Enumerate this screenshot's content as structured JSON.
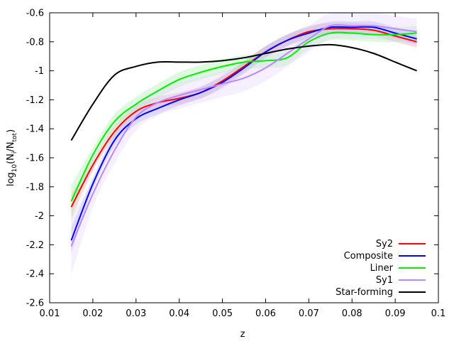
{
  "chart_data": {
    "type": "line",
    "title": "",
    "xlabel": "z",
    "ylabel": "log10(Ni/Ntot)",
    "ylabel_parts": {
      "base": "log",
      "base_sub": "10",
      "open": "(N",
      "num_sub": "i",
      "mid": "/N",
      "den_sub": "tot",
      "close": ")"
    },
    "xlim": [
      0.01,
      0.1
    ],
    "ylim": [
      -2.6,
      -0.6
    ],
    "xticks": [
      0.01,
      0.02,
      0.03,
      0.04,
      0.05,
      0.06,
      0.07,
      0.08,
      0.09,
      0.1
    ],
    "xtick_labels": [
      "0.01",
      "0.02",
      "0.03",
      "0.04",
      "0.05",
      "0.06",
      "0.07",
      "0.08",
      "0.09",
      "0.1"
    ],
    "yticks": [
      -2.6,
      -2.4,
      -2.2,
      -2,
      -1.8,
      -1.6,
      -1.4,
      -1.2,
      -1,
      -0.8,
      -0.6
    ],
    "ytick_labels": [
      "-2.6",
      "-2.4",
      "-2.2",
      "-2",
      "-1.8",
      "-1.6",
      "-1.4",
      "-1.2",
      "-1",
      "-0.8",
      "-0.6"
    ],
    "grid": false,
    "legend_position": "bottom-right",
    "series": [
      {
        "name": "Sy2",
        "color": "#ff0000",
        "band_color": "#e8a0a0",
        "band": 0.04,
        "x": [
          0.015,
          0.02,
          0.025,
          0.03,
          0.035,
          0.04,
          0.045,
          0.05,
          0.055,
          0.06,
          0.065,
          0.07,
          0.075,
          0.08,
          0.085,
          0.09,
          0.095
        ],
        "y": [
          -1.94,
          -1.65,
          -1.42,
          -1.28,
          -1.22,
          -1.19,
          -1.15,
          -1.07,
          -0.97,
          -0.87,
          -0.79,
          -0.73,
          -0.71,
          -0.71,
          -0.72,
          -0.76,
          -0.8
        ]
      },
      {
        "name": "Composite",
        "color": "#0000ff",
        "band_color": "#a0a0f0",
        "band": 0.04,
        "x": [
          0.015,
          0.02,
          0.025,
          0.03,
          0.035,
          0.04,
          0.045,
          0.05,
          0.055,
          0.06,
          0.065,
          0.07,
          0.075,
          0.08,
          0.085,
          0.09,
          0.095
        ],
        "y": [
          -2.17,
          -1.78,
          -1.48,
          -1.33,
          -1.26,
          -1.2,
          -1.15,
          -1.08,
          -0.98,
          -0.87,
          -0.79,
          -0.74,
          -0.7,
          -0.7,
          -0.7,
          -0.74,
          -0.78
        ]
      },
      {
        "name": "Liner",
        "color": "#00ee00",
        "band_color": "#a0f0a0",
        "band": 0.05,
        "x": [
          0.015,
          0.02,
          0.025,
          0.03,
          0.035,
          0.04,
          0.045,
          0.05,
          0.055,
          0.06,
          0.065,
          0.07,
          0.075,
          0.08,
          0.085,
          0.09,
          0.095
        ],
        "y": [
          -1.9,
          -1.58,
          -1.35,
          -1.23,
          -1.14,
          -1.06,
          -1.01,
          -0.97,
          -0.94,
          -0.93,
          -0.91,
          -0.8,
          -0.74,
          -0.74,
          -0.75,
          -0.75,
          -0.74
        ]
      },
      {
        "name": "Sy1",
        "color": "#bb88ff",
        "band_color": "#e2d0ff",
        "band": 0.09,
        "x": [
          0.015,
          0.02,
          0.025,
          0.03,
          0.035,
          0.04,
          0.045,
          0.05,
          0.055,
          0.06,
          0.065,
          0.07,
          0.075,
          0.08,
          0.085,
          0.09,
          0.095
        ],
        "y": [
          -2.21,
          -1.85,
          -1.55,
          -1.32,
          -1.22,
          -1.17,
          -1.13,
          -1.09,
          -1.05,
          -0.98,
          -0.88,
          -0.78,
          -0.69,
          -0.69,
          -0.69,
          -0.71,
          -0.73
        ]
      },
      {
        "name": "Star-forming",
        "color": "#000000",
        "band_color": null,
        "band": 0,
        "x": [
          0.015,
          0.02,
          0.025,
          0.03,
          0.035,
          0.04,
          0.045,
          0.05,
          0.055,
          0.06,
          0.065,
          0.07,
          0.075,
          0.08,
          0.085,
          0.09,
          0.095
        ],
        "y": [
          -1.48,
          -1.23,
          -1.03,
          -0.97,
          -0.94,
          -0.94,
          -0.94,
          -0.93,
          -0.91,
          -0.88,
          -0.85,
          -0.83,
          -0.82,
          -0.84,
          -0.88,
          -0.94,
          -1.0
        ]
      }
    ]
  }
}
